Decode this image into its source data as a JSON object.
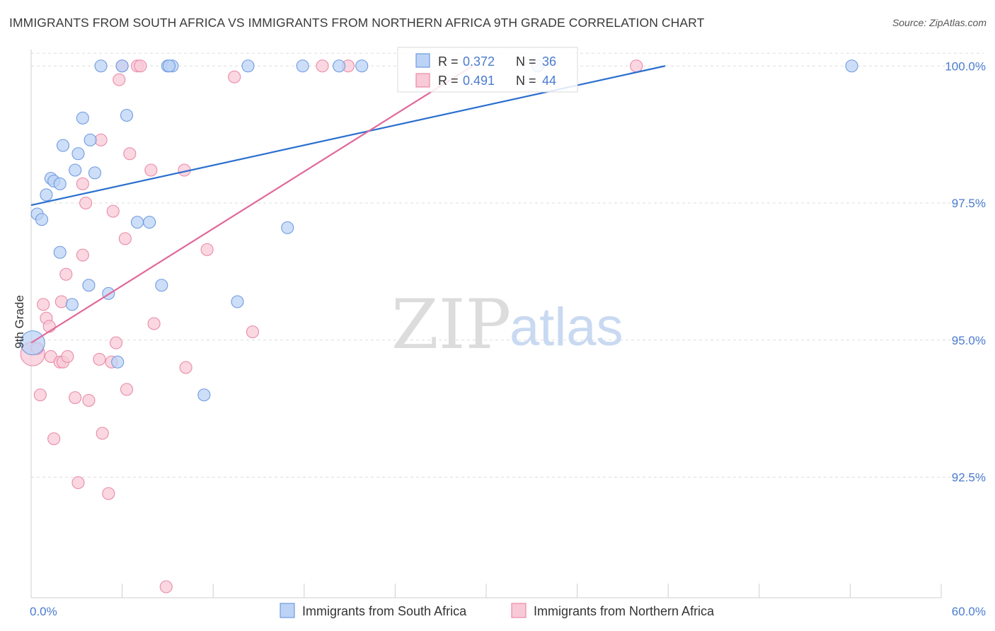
{
  "header": {
    "title": "IMMIGRANTS FROM SOUTH AFRICA VS IMMIGRANTS FROM NORTHERN AFRICA 9TH GRADE CORRELATION CHART",
    "source": "Source: ZipAtlas.com"
  },
  "watermark": {
    "zip": "ZIP",
    "atlas": "atlas"
  },
  "colors": {
    "blue_fill": "#bcd3f5",
    "blue_stroke": "#6f9be0",
    "blue_line": "#2a6fcf",
    "pink_fill": "#f8c9d7",
    "pink_stroke": "#e98aa8",
    "pink_line": "#e0689a",
    "grid": "#dddddd",
    "tick_text": "#4a7bd0"
  },
  "legend_box": {
    "r_label": "R =",
    "n_label": "N =",
    "rows": [
      {
        "series": "blue",
        "r": "0.372",
        "n": "36"
      },
      {
        "series": "pink",
        "r": "0.491",
        "n": "44"
      }
    ]
  },
  "chart_data": {
    "type": "scatter",
    "title": "IMMIGRANTS FROM SOUTH AFRICA VS IMMIGRANTS FROM NORTHERN AFRICA 9TH GRADE CORRELATION CHART",
    "xlabel": "",
    "ylabel": "9th Grade",
    "xlim": [
      0,
      60
    ],
    "ylim": [
      90.3,
      100.3
    ],
    "x_tick_labels": [
      "0.0%",
      "60.0%"
    ],
    "y_tick_labels": [
      "100.0%",
      "97.5%",
      "95.0%",
      "92.5%"
    ],
    "y_ticks": [
      100.0,
      97.5,
      95.0,
      92.5
    ],
    "grid": true,
    "legend_position": "bottom",
    "series": [
      {
        "name": "Immigrants from South Africa",
        "color": "blue",
        "points": [
          [
            0.1,
            94.95
          ],
          [
            0.4,
            97.3
          ],
          [
            0.7,
            97.2
          ],
          [
            1.0,
            97.65
          ],
          [
            1.3,
            97.95
          ],
          [
            1.5,
            97.9
          ],
          [
            1.9,
            97.85
          ],
          [
            2.1,
            98.55
          ],
          [
            1.9,
            96.6
          ],
          [
            2.9,
            98.1
          ],
          [
            3.1,
            98.4
          ],
          [
            3.4,
            99.05
          ],
          [
            3.8,
            96.0
          ],
          [
            3.9,
            98.65
          ],
          [
            4.2,
            98.05
          ],
          [
            2.7,
            95.65
          ],
          [
            5.1,
            95.85
          ],
          [
            5.7,
            94.6
          ],
          [
            4.6,
            100.0
          ],
          [
            6.0,
            100.0
          ],
          [
            6.3,
            99.1
          ],
          [
            7.0,
            97.15
          ],
          [
            7.8,
            97.15
          ],
          [
            8.6,
            96.0
          ],
          [
            9.0,
            100.0
          ],
          [
            9.3,
            100.0
          ],
          [
            9.1,
            100.0
          ],
          [
            11.4,
            94.0
          ],
          [
            13.6,
            95.7
          ],
          [
            14.3,
            100.0
          ],
          [
            16.9,
            97.05
          ],
          [
            17.9,
            100.0
          ],
          [
            20.3,
            100.0
          ],
          [
            21.8,
            100.0
          ],
          [
            33.4,
            100.0
          ],
          [
            54.1,
            100.0
          ]
        ],
        "trend": [
          [
            0,
            97.46
          ],
          [
            41.8,
            100.0
          ]
        ]
      },
      {
        "name": "Immigrants from Northern Africa",
        "color": "pink",
        "points": [
          [
            0.1,
            94.75
          ],
          [
            0.4,
            94.85
          ],
          [
            0.6,
            94.0
          ],
          [
            0.8,
            95.65
          ],
          [
            1.0,
            95.4
          ],
          [
            1.2,
            95.25
          ],
          [
            1.3,
            94.7
          ],
          [
            1.5,
            93.2
          ],
          [
            1.9,
            94.6
          ],
          [
            2.1,
            94.6
          ],
          [
            2.0,
            95.7
          ],
          [
            2.3,
            96.2
          ],
          [
            2.4,
            94.7
          ],
          [
            2.9,
            93.95
          ],
          [
            3.1,
            92.4
          ],
          [
            3.4,
            97.85
          ],
          [
            3.4,
            96.55
          ],
          [
            3.6,
            97.5
          ],
          [
            3.8,
            93.9
          ],
          [
            4.5,
            94.65
          ],
          [
            4.6,
            98.65
          ],
          [
            4.7,
            93.3
          ],
          [
            5.1,
            92.2
          ],
          [
            5.3,
            94.6
          ],
          [
            5.4,
            97.35
          ],
          [
            5.6,
            94.95
          ],
          [
            5.8,
            99.75
          ],
          [
            6.0,
            100.0
          ],
          [
            6.3,
            94.1
          ],
          [
            6.5,
            98.4
          ],
          [
            6.2,
            96.85
          ],
          [
            7.0,
            100.0
          ],
          [
            7.2,
            100.0
          ],
          [
            7.9,
            98.1
          ],
          [
            8.1,
            95.3
          ],
          [
            8.9,
            90.5
          ],
          [
            10.1,
            98.1
          ],
          [
            10.2,
            94.5
          ],
          [
            11.6,
            96.65
          ],
          [
            13.4,
            99.8
          ],
          [
            14.6,
            95.15
          ],
          [
            19.2,
            100.0
          ],
          [
            20.9,
            100.0
          ],
          [
            39.9,
            100.0
          ]
        ],
        "trend": [
          [
            0,
            94.95
          ],
          [
            29.1,
            100.0
          ]
        ]
      }
    ]
  }
}
